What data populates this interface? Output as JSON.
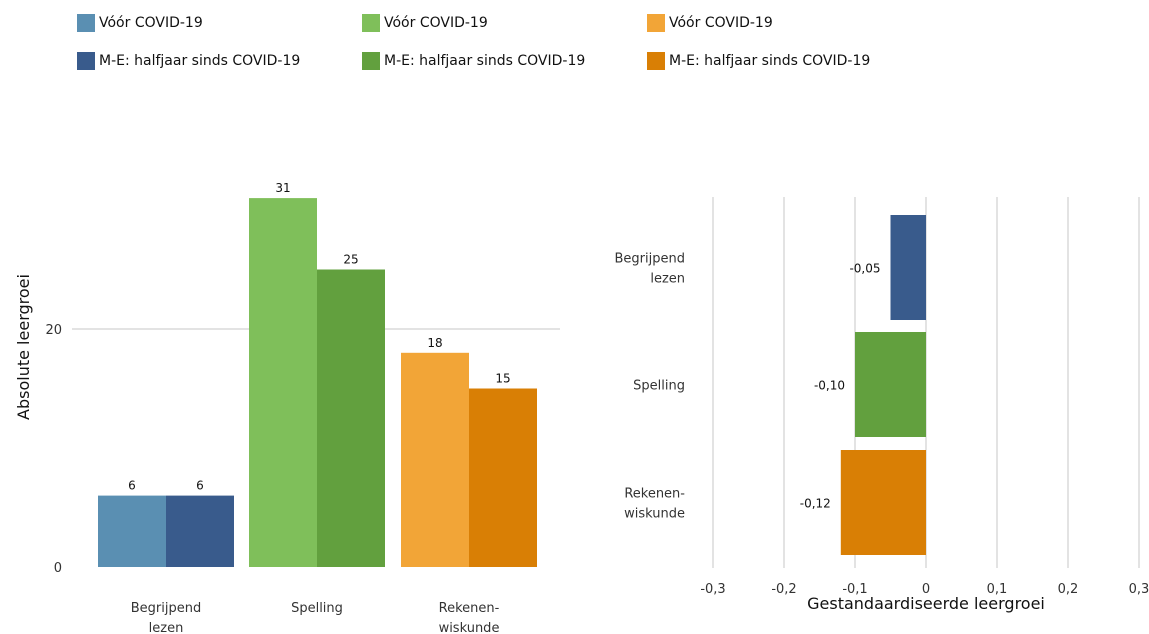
{
  "legend": [
    {
      "label": "Vóór COVID-19",
      "color": "#5a8fb2"
    },
    {
      "label": "Vóór COVID-19",
      "color": "#7fbf5a"
    },
    {
      "label": "Vóór COVID-19",
      "color": "#f2a537"
    },
    {
      "label": "M-E: halfjaar sinds COVID-19",
      "color": "#395b8c"
    },
    {
      "label": "M-E: halfjaar sinds COVID-19",
      "color": "#62a03e"
    },
    {
      "label": "M-E: halfjaar sinds COVID-19",
      "color": "#d97f05"
    }
  ],
  "chart_data": [
    {
      "type": "bar",
      "categories": [
        [
          "Begrijpend",
          "lezen"
        ],
        [
          "Spelling"
        ],
        [
          "Rekenen-",
          "wiskunde"
        ]
      ],
      "series": [
        {
          "name": "Vóór COVID-19",
          "values": [
            6,
            31,
            18
          ],
          "colors": [
            "#5a8fb2",
            "#7fbf5a",
            "#f2a537"
          ]
        },
        {
          "name": "M-E: halfjaar sinds COVID-19",
          "values": [
            6,
            25,
            15
          ],
          "colors": [
            "#395b8c",
            "#62a03e",
            "#d97f05"
          ]
        }
      ],
      "ylabel": "Absolute leergroei",
      "yticks": [
        "0",
        "20"
      ],
      "ytick_values": [
        0,
        20
      ],
      "ylim": [
        0,
        33
      ]
    },
    {
      "type": "bar",
      "orientation": "horizontal",
      "categories": [
        [
          "Begrijpend",
          "lezen"
        ],
        [
          "Spelling"
        ],
        [
          "Rekenen-",
          "wiskunde"
        ]
      ],
      "values": [
        -0.05,
        -0.1,
        -0.12
      ],
      "value_labels": [
        "-0,05",
        "-0,10",
        "-0,12"
      ],
      "colors": [
        "#395b8c",
        "#62a03e",
        "#d97f05"
      ],
      "xlabel": "Gestandaardiseerde leergroei",
      "xticks": [
        "-0,3",
        "-0,2",
        "-0,1",
        "0",
        "0,1",
        "0,2",
        "0,3"
      ],
      "xtick_values": [
        -0.3,
        -0.2,
        -0.1,
        0,
        0.1,
        0.2,
        0.3
      ],
      "xlim": [
        -0.3,
        0.3
      ]
    }
  ]
}
